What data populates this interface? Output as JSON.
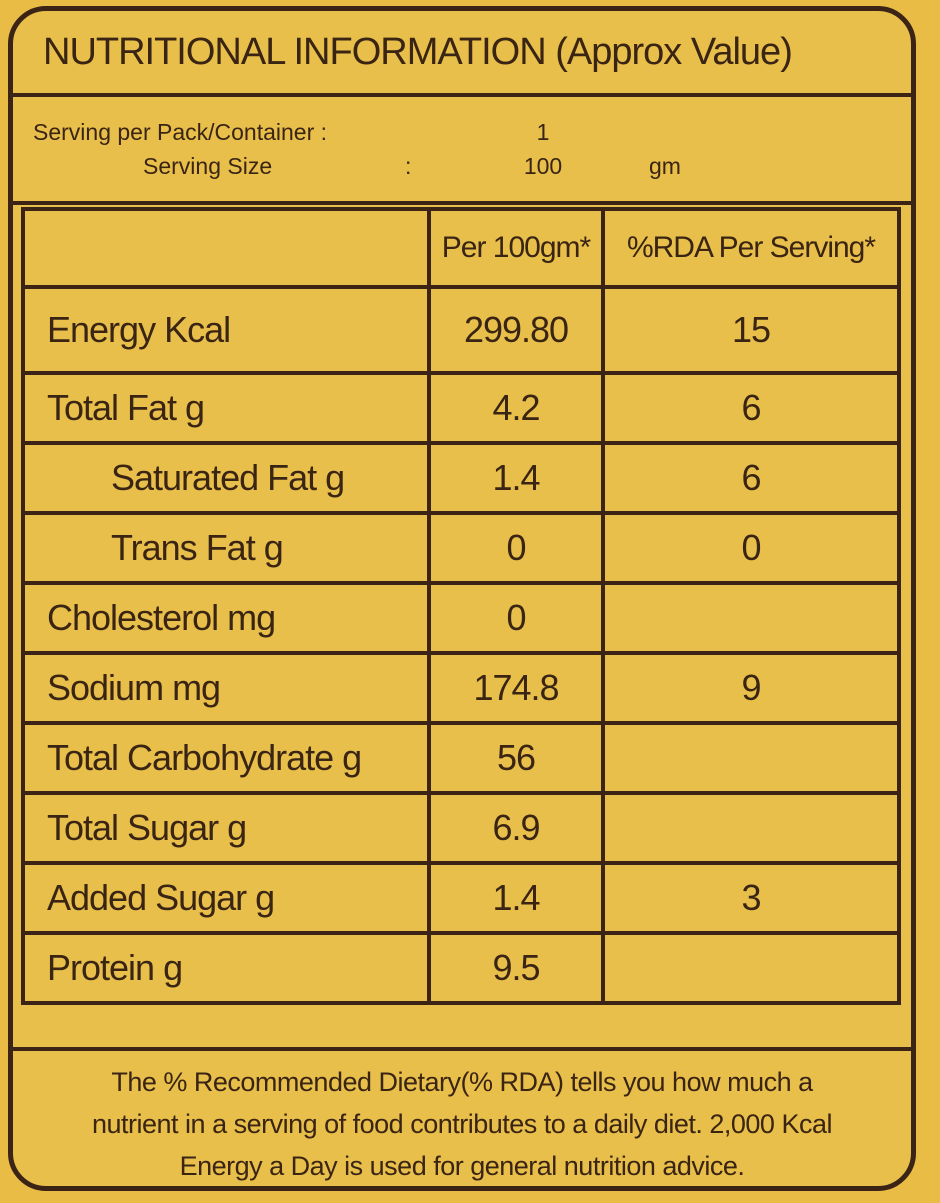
{
  "title": "NUTRITIONAL INFORMATION (Approx Value)",
  "serving": {
    "per_pack_label": "Serving per Pack/Container :",
    "per_pack_value": "1",
    "size_label": "Serving Size",
    "size_colon": ":",
    "size_value": "100",
    "size_unit": "gm"
  },
  "headers": {
    "per_100": "Per 100gm*",
    "rda": "%RDA Per Serving*"
  },
  "rows": [
    {
      "name": "Energy Kcal",
      "per_100": "299.80",
      "rda": "15"
    },
    {
      "name": "Total Fat g",
      "per_100": "4.2",
      "rda": "6"
    },
    {
      "name": "Saturated Fat g",
      "per_100": "1.4",
      "rda": "6"
    },
    {
      "name": "Trans Fat g",
      "per_100": "0",
      "rda": "0"
    },
    {
      "name": "Cholesterol mg",
      "per_100": "0",
      "rda": ""
    },
    {
      "name": "Sodium mg",
      "per_100": "174.8",
      "rda": "9"
    },
    {
      "name": "Total Carbohydrate g",
      "per_100": "56",
      "rda": ""
    },
    {
      "name": "Total Sugar g",
      "per_100": "6.9",
      "rda": ""
    },
    {
      "name": "Added Sugar g",
      "per_100": "1.4",
      "rda": "3"
    },
    {
      "name": "Protein g",
      "per_100": "9.5",
      "rda": ""
    }
  ],
  "footnote": {
    "line1": "The % Recommended Dietary(% RDA) tells you how much a",
    "line2": "nutrient in a serving of food contributes to a daily diet. 2,000 Kcal",
    "line3": "Energy a Day is used for general nutrition advice."
  }
}
